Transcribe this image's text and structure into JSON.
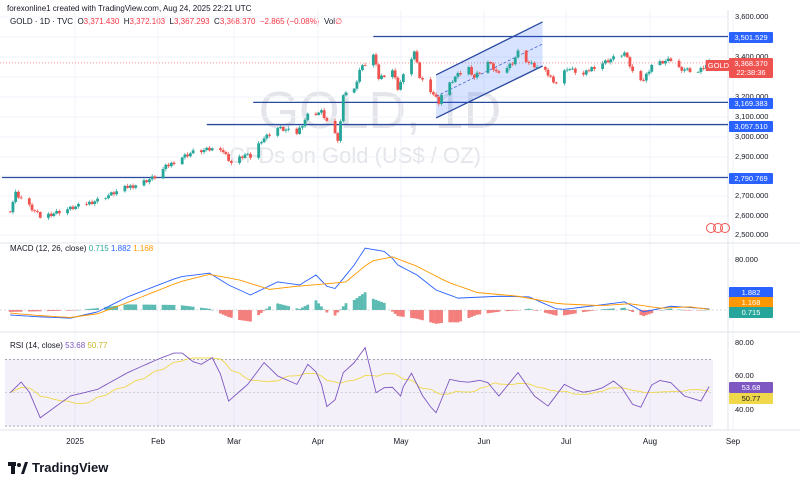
{
  "header": {
    "credit": "forexonline1 created with TradingView.com, Aug 24, 2025 22:21 UTC",
    "symbol": "GOLD · 1D · TVC",
    "o_label": "O",
    "o": "3,371.430",
    "h_label": "H",
    "h": "3,372.103",
    "l_label": "L",
    "l": "3,367.293",
    "c_label": "C",
    "c": "3,368.370",
    "change": "−2.865 (−0.08%)",
    "vol_label": "Vol",
    "vol": "∅"
  },
  "watermark": {
    "line1": "GOLD, 1D",
    "line2": "CFDs on Gold (US$ / OZ)"
  },
  "price_axis": {
    "labels": [
      "3,600.000",
      "3,400.000",
      "3,200.000",
      "3,100.000",
      "3,000.000",
      "2,900.000",
      "2,700.000",
      "2,600.000",
      "2,500.000"
    ],
    "current": {
      "symbol": "GOLD",
      "price": "3,368.370",
      "countdown": "22:38:36"
    },
    "levels": [
      "3,501.529",
      "3,169.383",
      "3,057.510",
      "2,790.769"
    ]
  },
  "macd": {
    "label": "MACD (12, 26, close)",
    "hist": "0.715",
    "macd": "1.882",
    "signal": "1.168",
    "axis": [
      "80.000"
    ]
  },
  "rsi": {
    "label": "RSI (14, close)",
    "rsi": "53.68",
    "ma": "50.77",
    "axis": [
      "80.00",
      "60.00",
      "40.00"
    ]
  },
  "x_axis": [
    "2025",
    "Feb",
    "Mar",
    "Apr",
    "May",
    "Jun",
    "Jul",
    "Aug",
    "Sep"
  ],
  "brand": {
    "logo": "TradingView"
  },
  "colors": {
    "up": "#26a69a",
    "down": "#ef5350",
    "level": "#2a4aa0",
    "channel": "#3355cc",
    "macd": "#2962ff",
    "signal": "#ff9800",
    "rsi": "#7e57c2",
    "rsi_ma": "#f0d84a"
  },
  "chart_data": {
    "type": "candlestick",
    "symbol": "GOLD",
    "interval": "1D",
    "ylim": [
      2500,
      3600
    ],
    "close_anchors": [
      [
        "2024-12-09",
        2627
      ],
      [
        "2024-12-11",
        2712
      ],
      [
        "2024-12-20",
        2592
      ],
      [
        "2025-01-02",
        2642
      ],
      [
        "2025-01-10",
        2677
      ],
      [
        "2025-01-21",
        2743
      ],
      [
        "2025-01-24",
        2753
      ],
      [
        "2025-01-31",
        2793
      ],
      [
        "2025-02-04",
        2844
      ],
      [
        "2025-02-10",
        2894
      ],
      [
        "2025-02-14",
        2919
      ],
      [
        "2025-02-24",
        2940
      ],
      [
        "2025-02-28",
        2864
      ],
      [
        "2025-03-05",
        2904
      ],
      [
        "2025-03-07",
        2894
      ],
      [
        "2025-03-11",
        2980
      ],
      [
        "2025-03-17",
        3040
      ],
      [
        "2025-03-24",
        3015
      ],
      [
        "2025-03-28",
        3106
      ],
      [
        "2025-04-02",
        3121
      ],
      [
        "2025-04-08",
        2980
      ],
      [
        "2025-04-09",
        3070
      ],
      [
        "2025-04-10",
        3217
      ],
      [
        "2025-04-14",
        3232
      ],
      [
        "2025-04-16",
        3333
      ],
      [
        "2025-04-21",
        3408
      ],
      [
        "2025-04-23",
        3292
      ],
      [
        "2025-04-28",
        3333
      ],
      [
        "2025-04-30",
        3242
      ],
      [
        "2025-05-06",
        3424
      ],
      [
        "2025-05-08",
        3297
      ],
      [
        "2025-05-12",
        3232
      ],
      [
        "2025-05-15",
        3171
      ],
      [
        "2025-05-16",
        3207
      ],
      [
        "2025-05-21",
        3297
      ],
      [
        "2025-05-26",
        3343
      ],
      [
        "2025-05-28",
        3297
      ],
      [
        "2025-06-02",
        3373
      ],
      [
        "2025-06-06",
        3308
      ],
      [
        "2025-06-11",
        3373
      ],
      [
        "2025-06-13",
        3424
      ],
      [
        "2025-06-17",
        3368
      ],
      [
        "2025-06-23",
        3323
      ],
      [
        "2025-06-27",
        3267
      ],
      [
        "2025-07-01",
        3343
      ],
      [
        "2025-07-07",
        3308
      ],
      [
        "2025-07-10",
        3343
      ],
      [
        "2025-07-18",
        3393
      ],
      [
        "2025-07-22",
        3418
      ],
      [
        "2025-07-25",
        3323
      ],
      [
        "2025-07-29",
        3282
      ],
      [
        "2025-08-01",
        3358
      ],
      [
        "2025-08-08",
        3383
      ],
      [
        "2025-08-11",
        3343
      ],
      [
        "2025-08-18",
        3323
      ],
      [
        "2025-08-22",
        3368.37
      ]
    ],
    "horizontal_levels": [
      {
        "price": 3501.529,
        "from": "2025-04-21"
      },
      {
        "price": 3169.383,
        "from": "2025-03-08"
      },
      {
        "price": 3057.51,
        "from": "2025-02-19"
      },
      {
        "price": 2790.769,
        "from": "2024-12-06"
      }
    ],
    "channel": {
      "start": "2025-05-14",
      "end": "2025-06-22",
      "lower": [
        3091,
        3353
      ],
      "upper": [
        3308,
        3575
      ]
    },
    "macd": {
      "params": [
        12,
        26
      ],
      "ylim": [
        -20,
        100
      ],
      "macd_anchors": [
        [
          "2024-12-09",
          -8
        ],
        [
          "2024-12-20",
          -11
        ],
        [
          "2024-12-31",
          -13
        ],
        [
          "2025-01-10",
          -3
        ],
        [
          "2025-01-21",
          21
        ],
        [
          "2025-02-09",
          53
        ],
        [
          "2025-02-20",
          59
        ],
        [
          "2025-02-27",
          40
        ],
        [
          "2025-03-07",
          24
        ],
        [
          "2025-03-17",
          45
        ],
        [
          "2025-03-25",
          40
        ],
        [
          "2025-03-31",
          56
        ],
        [
          "2025-04-06",
          29
        ],
        [
          "2025-04-14",
          72
        ],
        [
          "2025-04-18",
          99
        ],
        [
          "2025-04-26",
          93
        ],
        [
          "2025-04-30",
          72
        ],
        [
          "2025-05-07",
          56
        ],
        [
          "2025-05-14",
          32
        ],
        [
          "2025-05-22",
          19
        ],
        [
          "2025-06-06",
          22
        ],
        [
          "2025-06-17",
          21
        ],
        [
          "2025-06-28",
          0
        ],
        [
          "2025-07-13",
          8
        ],
        [
          "2025-07-22",
          13
        ],
        [
          "2025-07-29",
          -3
        ],
        [
          "2025-08-08",
          6
        ],
        [
          "2025-08-22",
          1.882
        ]
      ],
      "signal_anchors": [
        [
          "2024-12-09",
          -5
        ],
        [
          "2024-12-20",
          -9
        ],
        [
          "2024-12-31",
          -12
        ],
        [
          "2025-01-10",
          -6
        ],
        [
          "2025-01-21",
          12
        ],
        [
          "2025-02-09",
          45
        ],
        [
          "2025-02-20",
          57
        ],
        [
          "2025-03-03",
          48
        ],
        [
          "2025-03-14",
          33
        ],
        [
          "2025-03-24",
          38
        ],
        [
          "2025-04-04",
          42
        ],
        [
          "2025-04-11",
          45
        ],
        [
          "2025-04-20",
          78
        ],
        [
          "2025-04-28",
          85
        ],
        [
          "2025-05-07",
          70
        ],
        [
          "2025-05-18",
          45
        ],
        [
          "2025-05-29",
          28
        ],
        [
          "2025-06-13",
          22
        ],
        [
          "2025-06-28",
          10
        ],
        [
          "2025-07-13",
          7
        ],
        [
          "2025-07-24",
          10
        ],
        [
          "2025-08-04",
          3
        ],
        [
          "2025-08-15",
          5
        ],
        [
          "2025-08-22",
          1.168
        ]
      ]
    },
    "rsi": {
      "period": 14,
      "ylim": [
        20,
        85
      ],
      "bands": [
        30,
        70
      ],
      "anchors": [
        [
          "2024-12-09",
          50
        ],
        [
          "2024-12-14",
          58
        ],
        [
          "2024-12-20",
          35
        ],
        [
          "2024-12-31",
          48
        ],
        [
          "2025-01-10",
          52
        ],
        [
          "2025-01-21",
          62
        ],
        [
          "2025-02-01",
          70
        ],
        [
          "2025-02-09",
          75
        ],
        [
          "2025-02-16",
          66
        ],
        [
          "2025-02-22",
          72
        ],
        [
          "2025-02-27",
          45
        ],
        [
          "2025-03-06",
          55
        ],
        [
          "2025-03-12",
          68
        ],
        [
          "2025-03-17",
          60
        ],
        [
          "2025-03-24",
          55
        ],
        [
          "2025-03-29",
          70
        ],
        [
          "2025-04-02",
          55
        ],
        [
          "2025-04-05",
          35
        ],
        [
          "2025-04-10",
          62
        ],
        [
          "2025-04-14",
          68
        ],
        [
          "2025-04-18",
          77
        ],
        [
          "2025-04-22",
          50
        ],
        [
          "2025-04-27",
          55
        ],
        [
          "2025-05-01",
          48
        ],
        [
          "2025-05-04",
          65
        ],
        [
          "2025-05-10",
          45
        ],
        [
          "2025-05-14",
          38
        ],
        [
          "2025-05-19",
          58
        ],
        [
          "2025-05-25",
          56
        ],
        [
          "2025-06-01",
          58
        ],
        [
          "2025-06-06",
          48
        ],
        [
          "2025-06-13",
          62
        ],
        [
          "2025-06-19",
          48
        ],
        [
          "2025-06-24",
          42
        ],
        [
          "2025-06-30",
          55
        ],
        [
          "2025-07-06",
          50
        ],
        [
          "2025-07-13",
          52
        ],
        [
          "2025-07-19",
          58
        ],
        [
          "2025-07-27",
          38
        ],
        [
          "2025-08-02",
          58
        ],
        [
          "2025-08-08",
          56
        ],
        [
          "2025-08-13",
          48
        ],
        [
          "2025-08-19",
          45
        ],
        [
          "2025-08-22",
          53.68
        ]
      ]
    }
  }
}
